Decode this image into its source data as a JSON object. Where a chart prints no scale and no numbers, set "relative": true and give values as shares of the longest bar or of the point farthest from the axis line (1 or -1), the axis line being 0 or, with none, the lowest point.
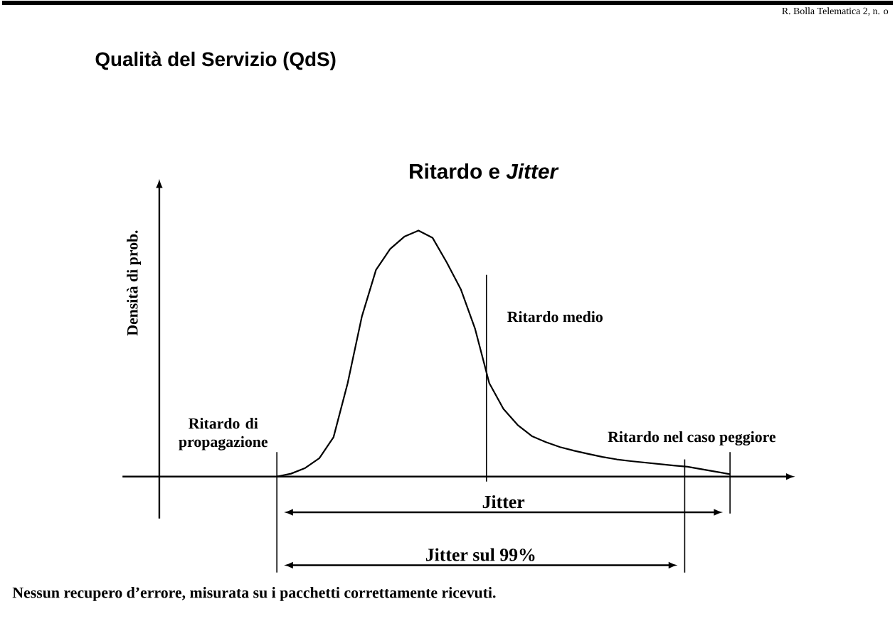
{
  "chart_data": {
    "type": "line",
    "title": "Qualità del Servizio (QdS)",
    "subtitle": "Ritardo e *Jitter*",
    "relative": true,
    "categories": [
      null,
      null,
      null,
      null,
      null,
      null,
      null,
      null,
      null,
      null,
      null,
      null,
      null,
      null,
      null,
      null,
      null,
      null,
      null,
      null,
      null,
      null,
      null,
      null,
      null,
      null,
      null,
      null,
      null,
      null,
      null,
      null,
      null
    ],
    "series": [
      {
        "color": "#000000",
        "values": [
          0,
          0.012,
          0.035,
          0.075,
          0.16,
          0.38,
          0.65,
          0.84,
          0.925,
          0.975,
          1,
          0.97,
          0.87,
          0.76,
          0.6,
          0.38,
          0.275,
          0.21,
          0.165,
          0.14,
          0.12,
          0.105,
          0.092,
          0.08,
          0.07,
          0.063,
          0.057,
          0.051,
          0.045,
          0.04,
          0.03,
          0.02,
          0.01
        ]
      }
    ],
    "annotations": [
      "Jitter",
      "Jitter sul 99%",
      "Nessun recupero d’errore, misurata su  i pacchetti correttamente ricevuti.",
      "R. Bolla Telematica 2, n. o",
      "Ritardo di propagazione",
      "Ritardo medio",
      "Ritardo nel caso peggiore",
      "Densità di prob."
    ]
  }
}
